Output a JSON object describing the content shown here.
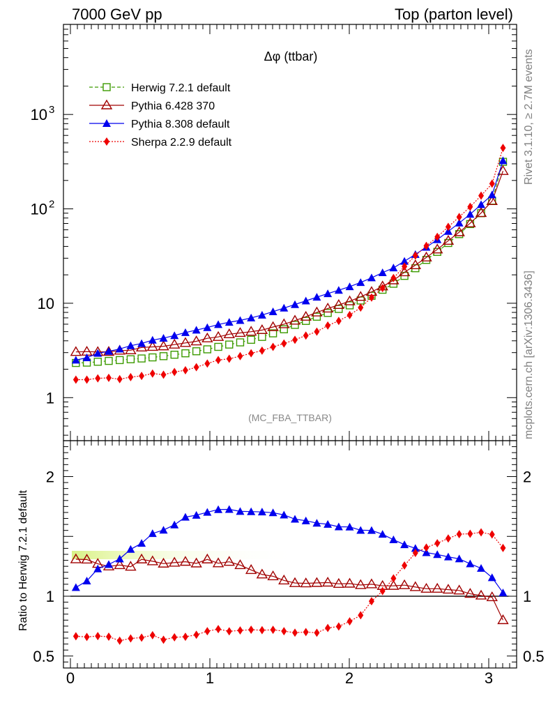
{
  "header": {
    "left": "7000 GeV pp",
    "right": "Top (parton level)"
  },
  "side_labels": {
    "rivet": "Rivet 3.1.10, ≥ 2.7M events",
    "mcplots": "mcplots.cern.ch [arXiv:1306.3436]"
  },
  "analysis_tag": "(MC_FBA_TTBAR)",
  "chart_data": {
    "type": "line",
    "title": "Δφ (ttbar)",
    "xlim": [
      -0.05,
      3.2
    ],
    "x_ticks": [
      "0",
      "1",
      "2",
      "3"
    ],
    "top": {
      "yscale": "log",
      "ylim": [
        0.35,
        9000
      ],
      "y_ticks": [
        "1",
        "10",
        "10^2",
        "10^3"
      ]
    },
    "bottom": {
      "ylabel": "Ratio to Herwig 7.2.1 default",
      "ylim": [
        0.4,
        2.3
      ],
      "y_ticks": [
        "0.5",
        "1",
        "2"
      ]
    },
    "reference": "Herwig 7.2.1 default",
    "x": [
      0.0393,
      0.1178,
      0.1963,
      0.2749,
      0.3534,
      0.432,
      0.5105,
      0.589,
      0.6676,
      0.7461,
      0.8247,
      0.9032,
      0.9817,
      1.0603,
      1.1388,
      1.2174,
      1.2959,
      1.3744,
      1.453,
      1.5315,
      1.6101,
      1.6886,
      1.7671,
      1.8457,
      1.9242,
      2.0028,
      2.0813,
      2.1598,
      2.2384,
      2.3169,
      2.3955,
      2.474,
      2.5525,
      2.6311,
      2.7096,
      2.7882,
      2.8667,
      2.9452,
      3.0238,
      3.1023
    ],
    "series": [
      {
        "name": "Herwig 7.2.1 default",
        "color": "#3c9a00",
        "marker": "open-square",
        "dash": "dashed",
        "values": [
          2.33,
          2.35,
          2.4,
          2.45,
          2.5,
          2.55,
          2.6,
          2.67,
          2.75,
          2.85,
          2.95,
          3.1,
          3.25,
          3.45,
          3.65,
          3.85,
          4.1,
          4.4,
          4.8,
          5.3,
          5.9,
          6.5,
          7.2,
          7.9,
          8.7,
          9.5,
          10.7,
          12.0,
          13.9,
          16.1,
          19.5,
          23.5,
          28.8,
          35.0,
          43.5,
          54.0,
          69.0,
          90.0,
          122,
          315
        ]
      },
      {
        "name": "Pythia 6.428 370",
        "color": "#a00000",
        "marker": "open-triangle",
        "dash": "solid",
        "values": [
          3.05,
          3.07,
          3.05,
          3.06,
          3.15,
          3.18,
          3.4,
          3.45,
          3.5,
          3.65,
          3.8,
          3.95,
          4.25,
          4.4,
          4.7,
          4.85,
          5.0,
          5.2,
          5.6,
          6.0,
          6.55,
          7.2,
          8.0,
          8.8,
          9.6,
          10.5,
          11.7,
          13.2,
          15.1,
          17.5,
          21.3,
          25.3,
          30.6,
          37.2,
          45.9,
          56.6,
          70.4,
          90.5,
          121,
          252
        ]
      },
      {
        "name": "Pythia 8.308 default",
        "color": "#0000ee",
        "marker": "filled-triangle",
        "dash": "solid",
        "values": [
          2.5,
          2.65,
          2.95,
          3.1,
          3.28,
          3.55,
          3.75,
          4.07,
          4.27,
          4.55,
          4.9,
          5.2,
          5.53,
          5.95,
          6.3,
          6.58,
          7.0,
          7.5,
          8.15,
          8.9,
          9.7,
          10.6,
          11.6,
          12.65,
          13.75,
          15.0,
          16.6,
          18.6,
          21.1,
          23.7,
          27.9,
          32.9,
          39.3,
          47.2,
          57.8,
          70.9,
          87.7,
          111.0,
          141.0,
          324.0
        ]
      },
      {
        "name": "Sherpa 2.2.9 default",
        "color": "#ee0000",
        "marker": "filled-diamond",
        "dash": "dotted",
        "values": [
          1.55,
          1.55,
          1.6,
          1.62,
          1.57,
          1.65,
          1.7,
          1.8,
          1.75,
          1.87,
          1.95,
          2.1,
          2.3,
          2.5,
          2.58,
          2.75,
          2.95,
          3.15,
          3.45,
          3.75,
          4.1,
          4.55,
          5.0,
          5.8,
          6.5,
          7.5,
          9.0,
          11.5,
          14.5,
          18.5,
          24.5,
          32.0,
          40.5,
          50.5,
          64.5,
          82.0,
          105.0,
          138.0,
          185.0,
          442.0
        ]
      }
    ]
  }
}
